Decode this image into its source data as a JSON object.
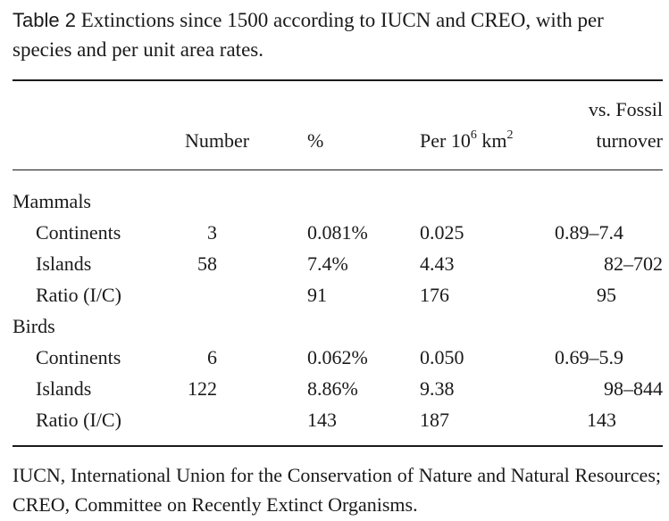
{
  "caption": {
    "label": "Table 2",
    "text": "Extinctions since 1500 according to IUCN and CREO, with per species and per unit area rates."
  },
  "headers": {
    "number": "Number",
    "percent": "%",
    "per_area_base": "Per 10",
    "per_area_exp": "6",
    "per_area_unit": "km",
    "per_area_unit_exp": "2",
    "fossil_line1": "vs. Fossil",
    "fossil_line2": "turnover"
  },
  "groups": [
    {
      "name": "Mammals",
      "rows": [
        {
          "label": "Continents",
          "number": "3",
          "percent": "0.081%",
          "per_area": "0.025",
          "fossil": "0.89–7.4"
        },
        {
          "label": "Islands",
          "number": "58",
          "percent": "7.4%",
          "per_area": "4.43",
          "fossil": "82–702"
        },
        {
          "label": "Ratio (I/C)",
          "number": "",
          "percent": "91",
          "per_area": "176",
          "fossil": "95"
        }
      ]
    },
    {
      "name": "Birds",
      "rows": [
        {
          "label": "Continents",
          "number": "6",
          "percent": "0.062%",
          "per_area": "0.050",
          "fossil": "0.69–5.9"
        },
        {
          "label": "Islands",
          "number": "122",
          "percent": "8.86%",
          "per_area": "9.38",
          "fossil": "98–844"
        },
        {
          "label": "Ratio (I/C)",
          "number": "",
          "percent": "143",
          "per_area": "187",
          "fossil": "143"
        }
      ]
    }
  ],
  "footnote": "IUCN, International Union for the Conservation of Nature and Natural Resources; CREO, Committee on Recently Extinct Organisms."
}
